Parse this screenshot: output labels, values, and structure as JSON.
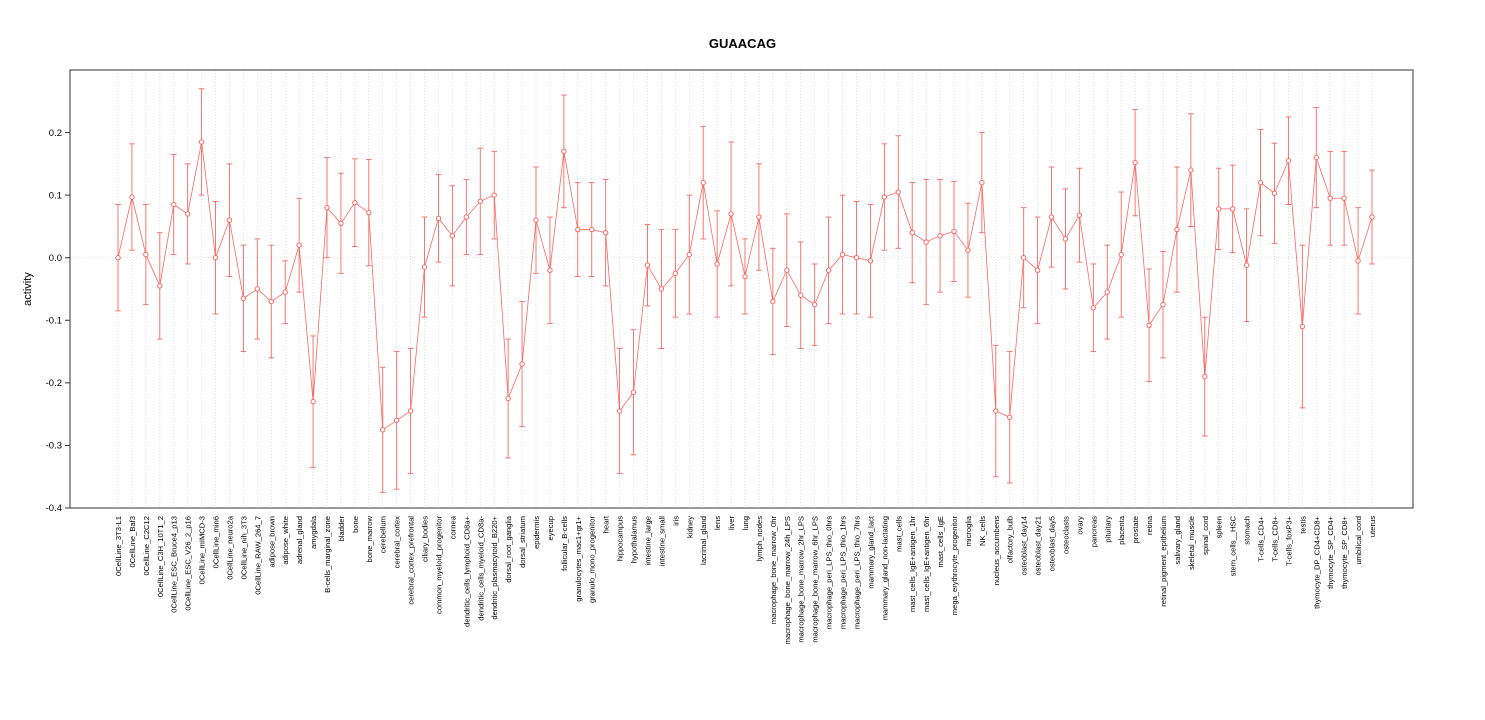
{
  "chart_data": {
    "type": "line",
    "title": "GUAACAG",
    "ylabel": "activity",
    "xlabel": "",
    "ylim": [
      -0.4,
      0.3
    ],
    "yticks": [
      -0.4,
      -0.3,
      -0.2,
      -0.1,
      0.0,
      0.1,
      0.2
    ],
    "grid": "dotted vertical gridline per category; dotted horizontal line at y=0",
    "legend": "none",
    "accent_color": "#f96964",
    "categories": [
      "0CellLine_3T3-L1",
      "0CellLine_Baf3",
      "0CellLine_C2C12",
      "0CellLine_C3H_10T1_2",
      "0CellLine_ESC_Bruce4_p13",
      "0CellLine_ESC_V26_2_p16",
      "0CellLine_mIMCD-3",
      "0CellLine_min6",
      "0CellLine_neuro2a",
      "0CellLine_nih_3T3",
      "0CellLine_RAW_264_7",
      "adipose_brown",
      "adipose_white",
      "adrenal_gland",
      "amygdala",
      "B-cells_marginal_zone",
      "bladder",
      "bone",
      "bone_marrow",
      "cerebellum",
      "cerebral_cortex",
      "cerebral_cortex_prefrontal",
      "ciliary_bodies",
      "common_myeloid_progenitor",
      "cornea",
      "dendritic_cells_lymphoid_CD8a+",
      "dendritic_cells_myeloid_CD8a-",
      "dendritic_plasmacytoid_B220+",
      "dorsal_root_ganglia",
      "dorsal_striatum",
      "epidermis",
      "eyecup",
      "follicular_B-cells",
      "granulocytes_mac1+gr1+",
      "granulo_mono_progenitor",
      "heart",
      "hippocampus",
      "hypothalamus",
      "intestine_large",
      "intestine_small",
      "iris",
      "kidney",
      "lacrimal_gland",
      "lens",
      "liver",
      "lung",
      "lymph_nodes",
      "macrophage_bone_marrow_0hr",
      "macrophage_bone_marrow_24h_LPS",
      "macrophage_bone_marrow_2hr_LPS",
      "macrophage_bone_marrow_6hr_LPS",
      "macrophage_peri_LPS_thio_0hrs",
      "macrophage_peri_LPS_thio_1hrs",
      "macrophage_peri_LPS_thio_7hrs",
      "mammary_gland_lact",
      "mammary_gland_non-lactating",
      "mast_cells",
      "mast_cells_IgE+antigen_1hr",
      "mast_cells_IgE+antigen_6hr",
      "mast_cells_IgE",
      "mega_erythrocyte_progenitor",
      "microglia",
      "NK_cells",
      "nucleus_accumbens",
      "olfactory_bulb",
      "osteoblast_day14",
      "osteoblast_day21",
      "osteoblast_day5",
      "osteoclasts",
      "ovary",
      "pancreas",
      "pituitary",
      "placenta",
      "prostate",
      "retina",
      "retinal_pigment_epithelium",
      "salivary_gland",
      "skeletal_muscle",
      "spinal_cord",
      "spleen",
      "stem_cells__HSC",
      "stomach",
      "T-cells_CD4+",
      "T-cells_CD8+",
      "T-cells_foxP3+",
      "testis",
      "thymocyte_DP_CD4+CD8+",
      "thymocyte_SP_CD4+",
      "thymocyte_SP_CD8+",
      "umbilical_cord",
      "uterus"
    ],
    "series": [
      {
        "name": "activity",
        "values": [
          0.0,
          0.097,
          0.005,
          -0.045,
          0.085,
          0.07,
          0.185,
          0.0,
          0.06,
          -0.065,
          -0.05,
          -0.07,
          -0.055,
          0.02,
          -0.23,
          0.08,
          0.055,
          0.088,
          0.072,
          -0.275,
          -0.26,
          -0.245,
          -0.015,
          0.063,
          0.035,
          0.065,
          0.09,
          0.1,
          -0.225,
          -0.17,
          0.06,
          -0.02,
          0.17,
          0.045,
          0.045,
          0.04,
          -0.245,
          -0.215,
          -0.012,
          -0.05,
          -0.025,
          0.005,
          0.12,
          -0.01,
          0.07,
          -0.03,
          0.065,
          -0.07,
          -0.02,
          -0.06,
          -0.075,
          -0.02,
          0.005,
          0.0,
          -0.005,
          0.097,
          0.105,
          0.04,
          0.025,
          0.035,
          0.042,
          0.012,
          0.12,
          -0.245,
          -0.255,
          0.0,
          -0.02,
          0.065,
          0.03,
          0.068,
          -0.08,
          -0.055,
          0.005,
          0.152,
          -0.108,
          -0.075,
          0.045,
          0.14,
          -0.19,
          0.078,
          0.078,
          -0.012,
          0.12,
          0.103,
          0.155,
          -0.11,
          0.16,
          0.095,
          0.095,
          -0.005,
          0.065
        ],
        "errors": [
          0.085,
          0.085,
          0.08,
          0.085,
          0.08,
          0.08,
          0.085,
          0.09,
          0.09,
          0.085,
          0.08,
          0.09,
          0.05,
          0.075,
          0.105,
          0.08,
          0.08,
          0.07,
          0.085,
          0.1,
          0.11,
          0.1,
          0.08,
          0.07,
          0.08,
          0.06,
          0.085,
          0.07,
          0.095,
          0.1,
          0.085,
          0.085,
          0.09,
          0.075,
          0.075,
          0.085,
          0.1,
          0.1,
          0.065,
          0.095,
          0.07,
          0.095,
          0.09,
          0.085,
          0.115,
          0.06,
          0.085,
          0.085,
          0.09,
          0.085,
          0.065,
          0.085,
          0.095,
          0.09,
          0.09,
          0.085,
          0.09,
          0.08,
          0.1,
          0.09,
          0.08,
          0.075,
          0.08,
          0.105,
          0.105,
          0.08,
          0.085,
          0.08,
          0.08,
          0.075,
          0.07,
          0.075,
          0.1,
          0.085,
          0.09,
          0.085,
          0.1,
          0.09,
          0.095,
          0.065,
          0.07,
          0.09,
          0.085,
          0.08,
          0.07,
          0.13,
          0.08,
          0.075,
          0.075,
          0.085,
          0.075
        ]
      }
    ]
  }
}
